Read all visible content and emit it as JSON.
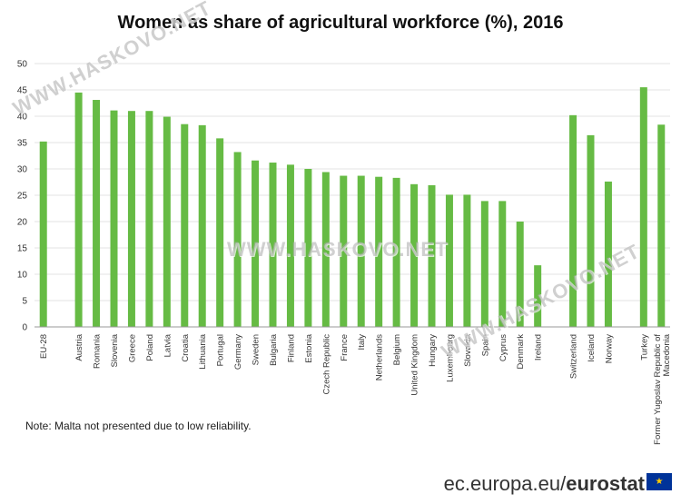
{
  "title": "Women as share of agricultural workforce (%), 2016",
  "note": "Note: Malta not presented due to low reliability.",
  "watermark": "WWW.HASKOVO.NET",
  "source": {
    "domain": "ec.europa.eu/",
    "brand": "eurostat"
  },
  "colors": {
    "bar": "#66bb44",
    "grid": "#e3e3e3",
    "axis": "#999999",
    "text": "#333333"
  },
  "chart_data": {
    "type": "bar",
    "title": "Women as share of agricultural workforce (%), 2016",
    "xlabel": "",
    "ylabel": "",
    "ylim": [
      0,
      50
    ],
    "yticks": [
      0,
      5,
      10,
      15,
      20,
      25,
      30,
      35,
      40,
      45,
      50
    ],
    "grid": true,
    "categories": [
      "EU-28",
      "",
      "Austria",
      "Romania",
      "Slovenia",
      "Greece",
      "Poland",
      "Latvia",
      "Croatia",
      "Lithuania",
      "Portugal",
      "Germany",
      "Sweden",
      "Bulgaria",
      "Finland",
      "Estonia",
      "Czech Republic",
      "France",
      "Italy",
      "Netherlands",
      "Belgium",
      "United Kingdom",
      "Hungary",
      "Luxembourg",
      "Slovakia",
      "Spain",
      "Cyprus",
      "Denmark",
      "Ireland",
      "",
      "Switzerland",
      "Iceland",
      "Norway",
      "",
      "Turkey",
      "Former Yugoslav Republic of Macedonia"
    ],
    "values": [
      35.2,
      null,
      44.5,
      43.1,
      41.1,
      41.0,
      41.0,
      39.9,
      38.5,
      38.3,
      35.8,
      33.2,
      31.6,
      31.2,
      30.8,
      30.0,
      29.4,
      28.7,
      28.7,
      28.5,
      28.3,
      27.1,
      26.9,
      25.1,
      25.1,
      23.9,
      23.9,
      20.0,
      11.7,
      null,
      40.2,
      36.4,
      27.6,
      null,
      45.5,
      38.4
    ]
  }
}
